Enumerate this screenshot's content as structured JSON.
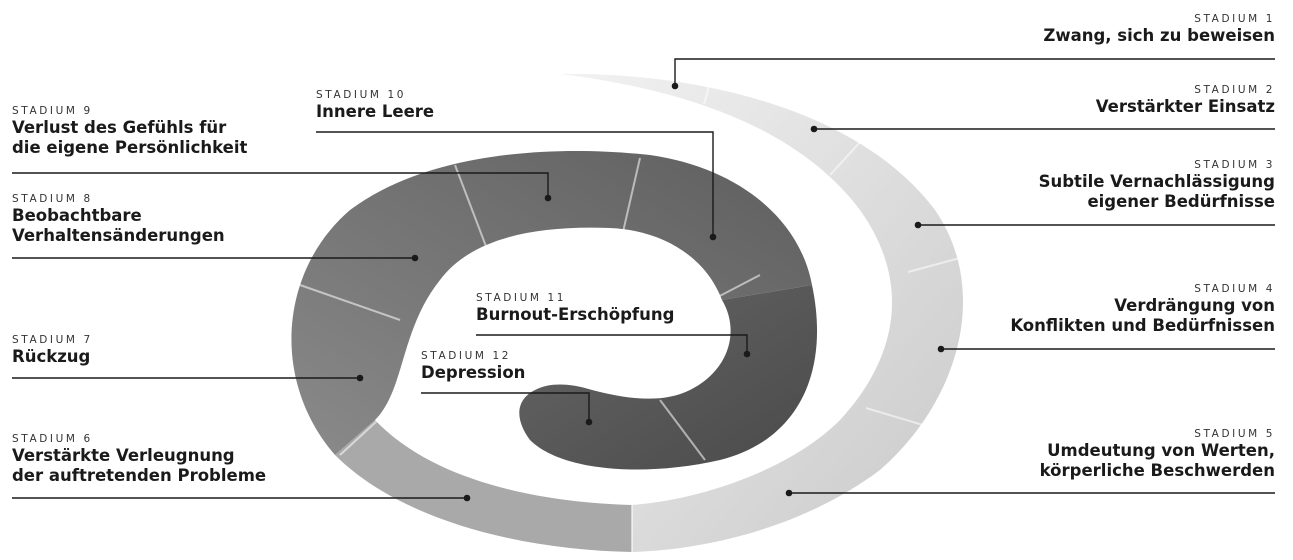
{
  "stages": [
    {
      "id": 1,
      "kicker": "STADIUM 1",
      "lines": [
        "Zwang, sich zu beweisen"
      ]
    },
    {
      "id": 2,
      "kicker": "STADIUM 2",
      "lines": [
        "Verstärkter Einsatz"
      ]
    },
    {
      "id": 3,
      "kicker": "STADIUM 3",
      "lines": [
        "Subtile Vernachlässigung",
        "eigener Bedürfnisse"
      ]
    },
    {
      "id": 4,
      "kicker": "STADIUM 4",
      "lines": [
        "Verdrängung von",
        "Konflikten und Bedürfnissen"
      ]
    },
    {
      "id": 5,
      "kicker": "STADIUM 5",
      "lines": [
        "Umdeutung von Werten,",
        "körperliche Beschwerden"
      ]
    },
    {
      "id": 6,
      "kicker": "STADIUM 6",
      "lines": [
        "Verstärkte Verleugnung",
        "der auftretenden Probleme"
      ]
    },
    {
      "id": 7,
      "kicker": "STADIUM 7",
      "lines": [
        "Rückzug"
      ]
    },
    {
      "id": 8,
      "kicker": "STADIUM 8",
      "lines": [
        "Beobachtbare",
        "Verhaltensänderungen"
      ]
    },
    {
      "id": 9,
      "kicker": "STADIUM 9",
      "lines": [
        "Verlust des Gefühls für",
        "die eigene Persönlichkeit"
      ]
    },
    {
      "id": 10,
      "kicker": "STADIUM 10",
      "lines": [
        "Innere Leere"
      ]
    },
    {
      "id": 11,
      "kicker": "STADIUM 11",
      "lines": [
        "Burnout-Erschöpfung"
      ]
    },
    {
      "id": 12,
      "kicker": "STADIUM 12",
      "lines": [
        "Depression"
      ]
    }
  ]
}
